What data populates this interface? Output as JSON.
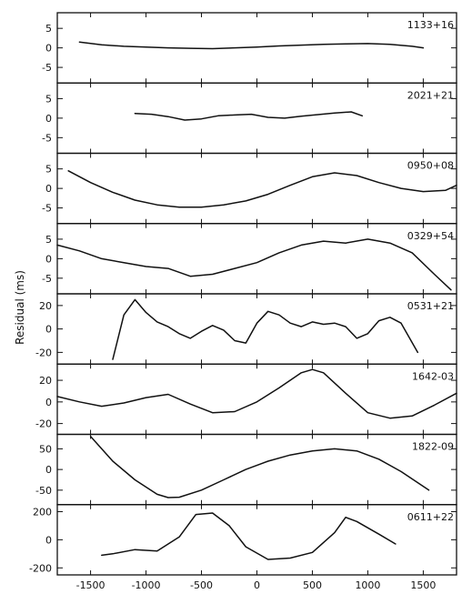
{
  "chart_data": {
    "type": "line",
    "ylabel": "Residual (ms)",
    "xlabel": "",
    "xlim": [
      -1800,
      1800
    ],
    "xticks": [
      -1500,
      -1000,
      -500,
      0,
      500,
      1000,
      1500
    ],
    "xtick_labels": [
      "-1500",
      "-1000",
      "-500",
      "0",
      "500",
      "1000",
      "1500"
    ],
    "panels": [
      {
        "name": "1133+16",
        "ylim": [
          -9,
          9
        ],
        "yticks": [
          5,
          0,
          -5
        ],
        "ytick_labels": [
          "5",
          "0",
          "-5"
        ],
        "x": [
          -1600,
          -1400,
          -1200,
          -1000,
          -800,
          -600,
          -400,
          -200,
          0,
          200,
          400,
          600,
          800,
          1000,
          1200,
          1400,
          1500
        ],
        "y": [
          1.5,
          0.8,
          0.4,
          0.2,
          0.0,
          -0.1,
          -0.2,
          0.0,
          0.2,
          0.5,
          0.7,
          0.9,
          1.0,
          1.1,
          0.9,
          0.4,
          0.0
        ]
      },
      {
        "name": "2021+21",
        "ylim": [
          -9,
          9
        ],
        "yticks": [
          5,
          0,
          -5
        ],
        "ytick_labels": [
          "5",
          "0",
          "-5"
        ],
        "x": [
          -1100,
          -950,
          -800,
          -650,
          -500,
          -350,
          -200,
          -50,
          100,
          250,
          400,
          550,
          700,
          850,
          950
        ],
        "y": [
          1.2,
          1.0,
          0.4,
          -0.5,
          -0.2,
          0.6,
          0.8,
          1.0,
          0.2,
          0.0,
          0.5,
          0.9,
          1.3,
          1.6,
          0.6
        ]
      },
      {
        "name": "0950+08",
        "ylim": [
          -9,
          9
        ],
        "yticks": [
          5,
          0,
          -5
        ],
        "ytick_labels": [
          "5",
          "0",
          "-5"
        ],
        "x": [
          -1700,
          -1500,
          -1300,
          -1100,
          -900,
          -700,
          -500,
          -300,
          -100,
          100,
          300,
          500,
          700,
          900,
          1100,
          1300,
          1500,
          1700,
          1800
        ],
        "y": [
          4.5,
          1.5,
          -1.0,
          -3.0,
          -4.2,
          -4.8,
          -4.8,
          -4.2,
          -3.2,
          -1.5,
          0.8,
          3.0,
          4.0,
          3.3,
          1.5,
          0.0,
          -0.8,
          -0.5,
          0.8
        ]
      },
      {
        "name": "0329+54",
        "ylim": [
          -9,
          9
        ],
        "yticks": [
          5,
          0,
          -5
        ],
        "ytick_labels": [
          "5",
          "0",
          "-5"
        ],
        "x": [
          -1800,
          -1600,
          -1400,
          -1200,
          -1000,
          -800,
          -600,
          -400,
          -200,
          0,
          200,
          400,
          600,
          800,
          1000,
          1200,
          1400,
          1600,
          1750
        ],
        "y": [
          3.5,
          2.0,
          0.0,
          -1.0,
          -2.0,
          -2.5,
          -4.5,
          -4.0,
          -2.5,
          -1.0,
          1.5,
          3.5,
          4.5,
          4.0,
          5.0,
          4.0,
          1.5,
          -4.0,
          -8.0
        ]
      },
      {
        "name": "0531+21",
        "ylim": [
          -30,
          30
        ],
        "yticks": [
          20,
          0,
          -20
        ],
        "ytick_labels": [
          "20",
          "0",
          "-20"
        ],
        "x": [
          -1300,
          -1200,
          -1100,
          -1000,
          -900,
          -800,
          -700,
          -600,
          -500,
          -400,
          -300,
          -200,
          -100,
          0,
          100,
          200,
          300,
          400,
          500,
          600,
          700,
          800,
          900,
          1000,
          1100,
          1200,
          1300,
          1450
        ],
        "y": [
          -26,
          12,
          25,
          14,
          6,
          2,
          -4,
          -8,
          -2,
          3,
          -1,
          -10,
          -12,
          5,
          15,
          12,
          5,
          2,
          6,
          4,
          5,
          2,
          -8,
          -4,
          7,
          10,
          5,
          -20
        ]
      },
      {
        "name": "1642-03",
        "ylim": [
          -30,
          35
        ],
        "yticks": [
          20,
          0,
          -20
        ],
        "ytick_labels": [
          "20",
          "0",
          "-20"
        ],
        "x": [
          -1800,
          -1600,
          -1400,
          -1200,
          -1000,
          -800,
          -600,
          -400,
          -200,
          0,
          200,
          400,
          500,
          600,
          800,
          1000,
          1200,
          1400,
          1600,
          1800
        ],
        "y": [
          5,
          0,
          -4,
          -1,
          4,
          7,
          -2,
          -10,
          -9,
          0,
          13,
          27,
          30,
          27,
          8,
          -10,
          -15,
          -13,
          -3,
          8
        ]
      },
      {
        "name": "1822-09",
        "ylim": [
          -85,
          85
        ],
        "yticks": [
          50,
          0,
          -50
        ],
        "ytick_labels": [
          "50",
          "0",
          "-50"
        ],
        "x": [
          -1500,
          -1300,
          -1100,
          -900,
          -800,
          -700,
          -500,
          -300,
          -100,
          100,
          300,
          500,
          700,
          900,
          1100,
          1300,
          1550
        ],
        "y": [
          80,
          20,
          -25,
          -60,
          -68,
          -67,
          -50,
          -25,
          0,
          20,
          35,
          45,
          50,
          45,
          25,
          -5,
          -50
        ]
      },
      {
        "name": "0611+22",
        "ylim": [
          -250,
          250
        ],
        "yticks": [
          200,
          0,
          -200
        ],
        "ytick_labels": [
          "200",
          "0",
          "-200"
        ],
        "x": [
          -1400,
          -1300,
          -1100,
          -900,
          -700,
          -550,
          -400,
          -250,
          -100,
          100,
          300,
          500,
          700,
          800,
          900,
          1100,
          1250
        ],
        "y": [
          -110,
          -100,
          -70,
          -80,
          20,
          180,
          190,
          100,
          -50,
          -140,
          -130,
          -90,
          50,
          160,
          130,
          40,
          -30
        ]
      }
    ]
  }
}
